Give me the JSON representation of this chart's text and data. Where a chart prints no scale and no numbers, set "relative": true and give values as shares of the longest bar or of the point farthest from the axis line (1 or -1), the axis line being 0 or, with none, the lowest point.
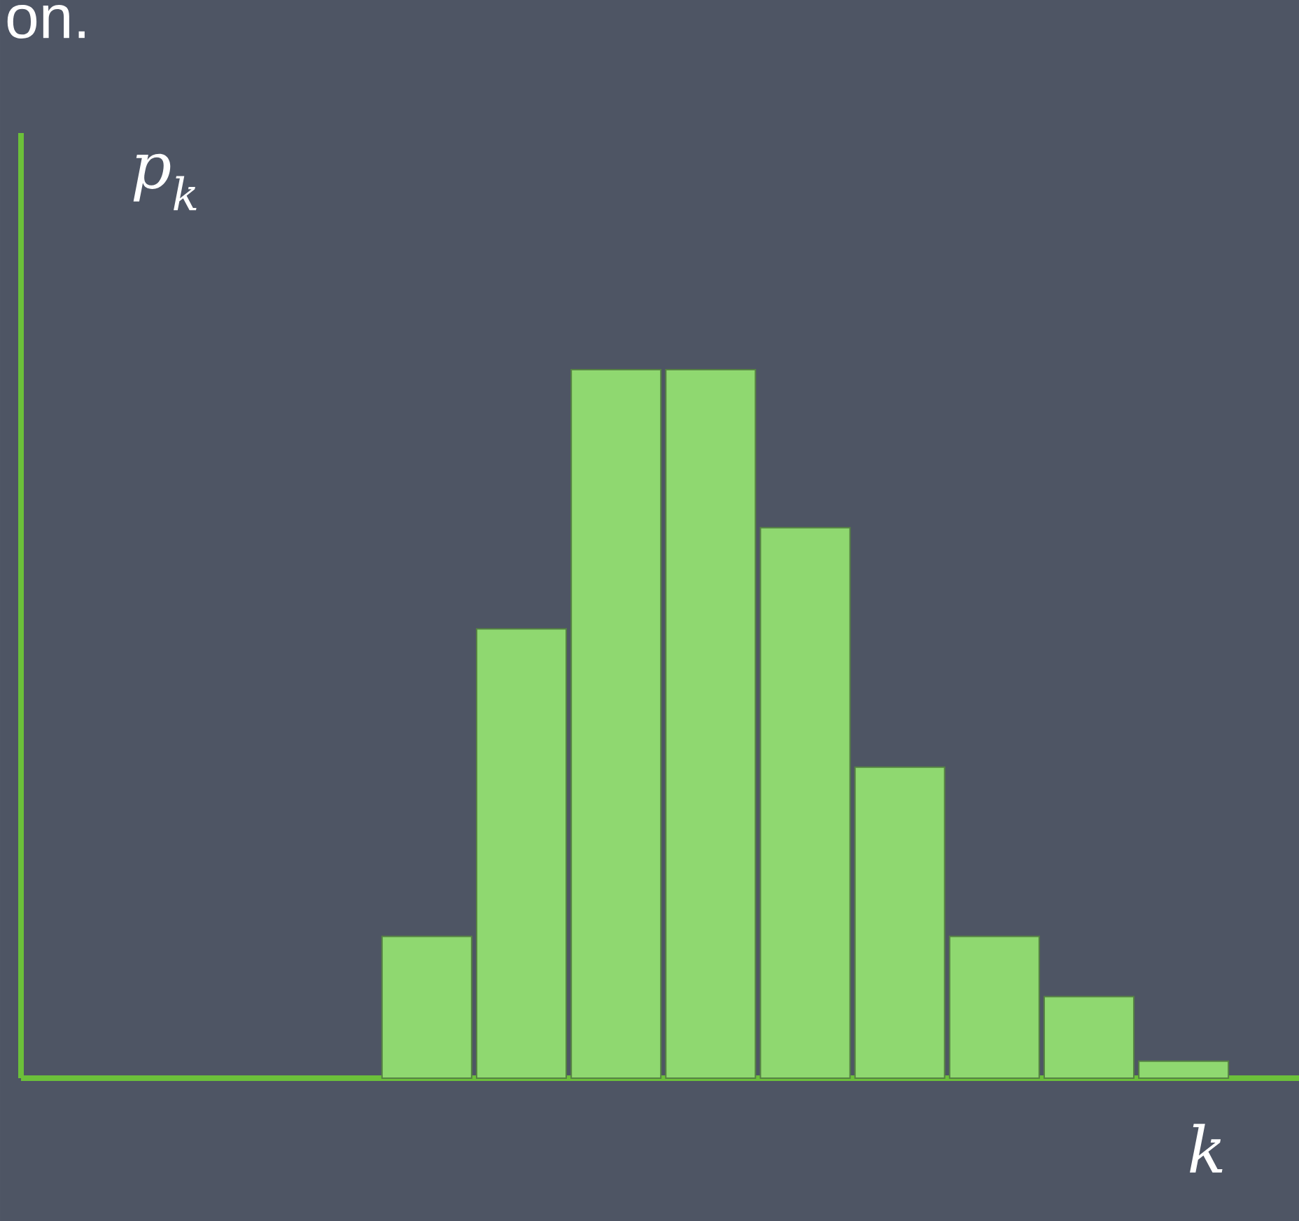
{
  "chart_data": {
    "type": "bar",
    "relative": true,
    "xlabel": "k",
    "ylabel": "p$_{k}$",
    "annotations": [
      "on."
    ],
    "categories": [
      null,
      null,
      null,
      null,
      null,
      null,
      null,
      null,
      null
    ],
    "values": [
      0.2,
      0.634,
      1,
      1,
      0.777,
      0.439,
      0.2,
      0.115,
      0.024
    ],
    "color": "#8fd870"
  }
}
